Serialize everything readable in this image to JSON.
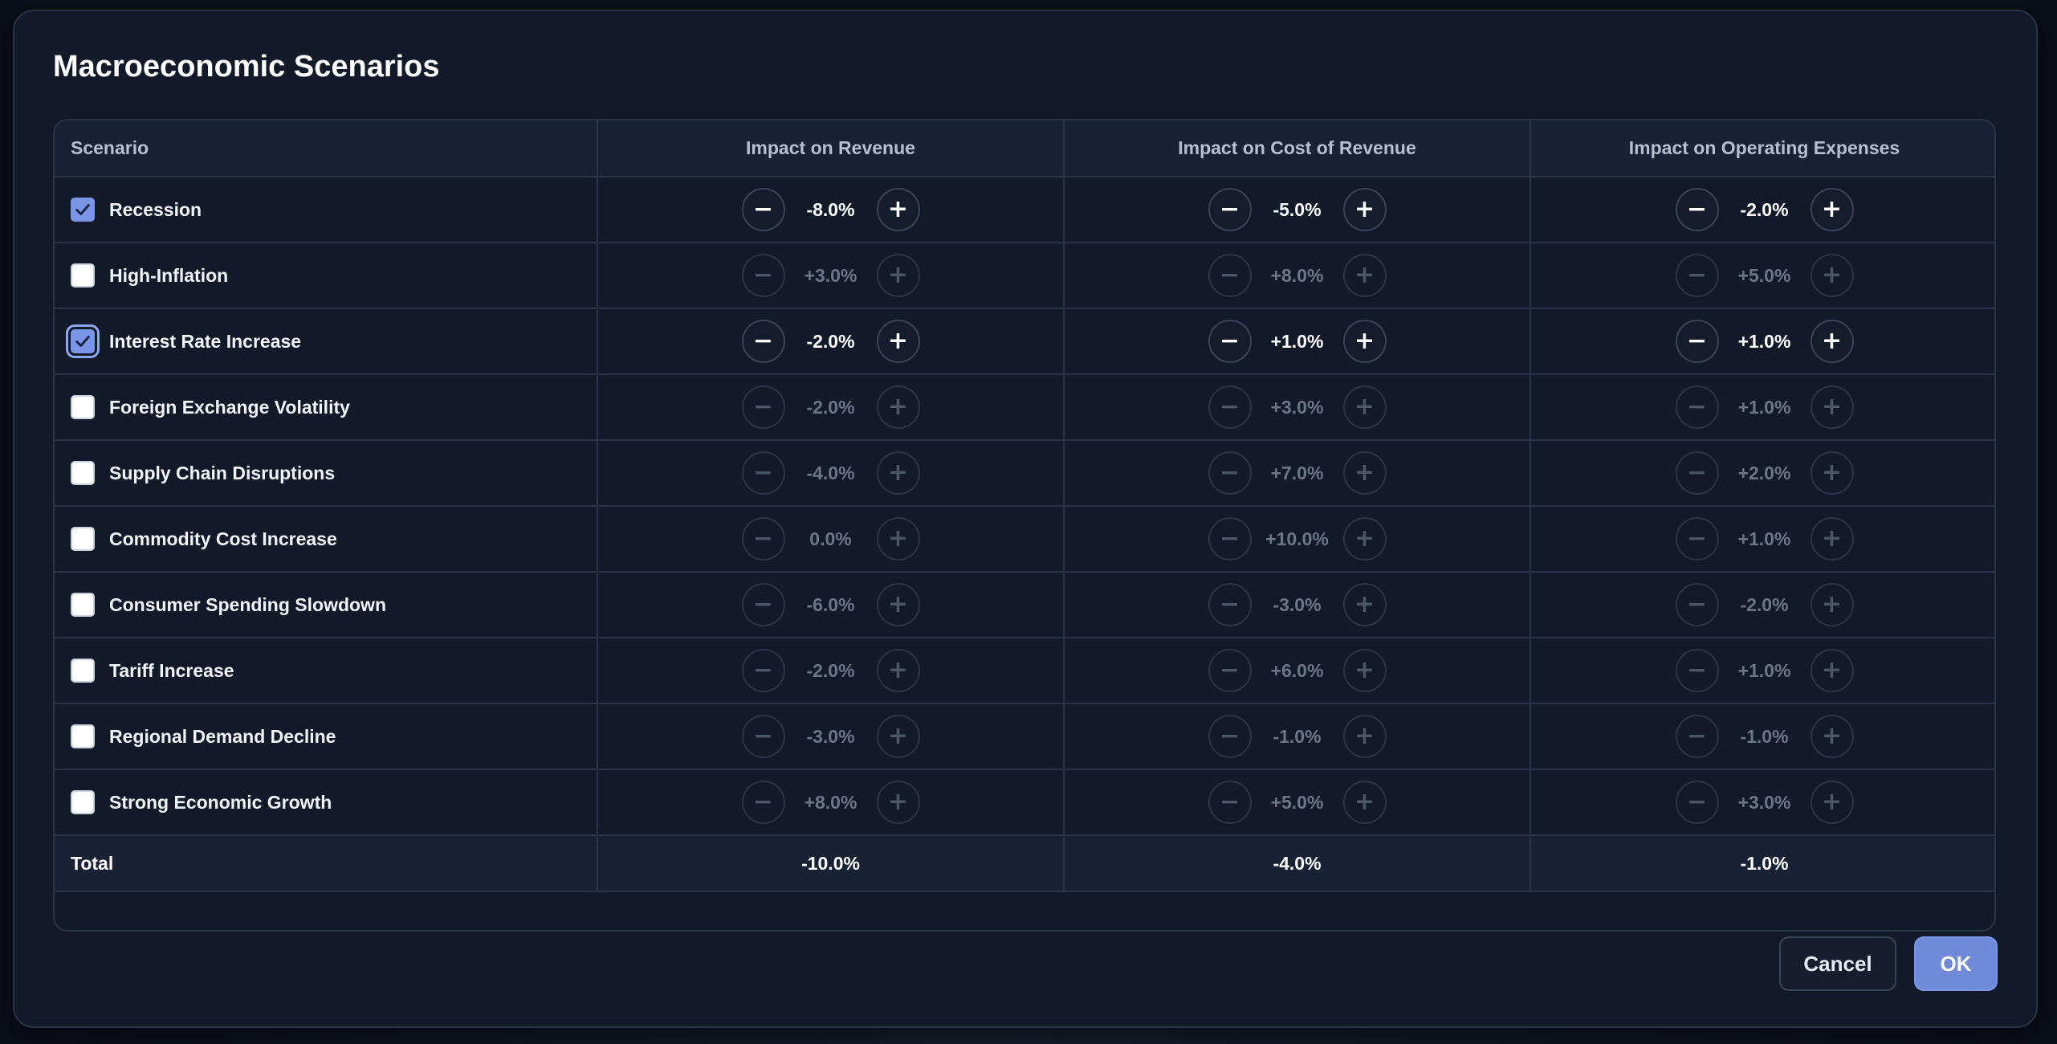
{
  "dialog": {
    "title": "Macroeconomic Scenarios",
    "cancel_label": "Cancel",
    "ok_label": "OK"
  },
  "table": {
    "headers": [
      "Scenario",
      "Impact on Revenue",
      "Impact on Cost of Revenue",
      "Impact on Operating Expenses"
    ],
    "rows": [
      {
        "name": "Recession",
        "checked": true,
        "revenue": "-8.0%",
        "cost": "-5.0%",
        "opex": "-2.0%"
      },
      {
        "name": "High-Inflation",
        "checked": false,
        "revenue": "+3.0%",
        "cost": "+8.0%",
        "opex": "+5.0%"
      },
      {
        "name": "Interest Rate Increase",
        "checked": true,
        "focused": true,
        "revenue": "-2.0%",
        "cost": "+1.0%",
        "opex": "+1.0%"
      },
      {
        "name": "Foreign Exchange Volatility",
        "checked": false,
        "revenue": "-2.0%",
        "cost": "+3.0%",
        "opex": "+1.0%"
      },
      {
        "name": "Supply Chain Disruptions",
        "checked": false,
        "revenue": "-4.0%",
        "cost": "+7.0%",
        "opex": "+2.0%"
      },
      {
        "name": "Commodity Cost Increase",
        "checked": false,
        "revenue": "0.0%",
        "cost": "+10.0%",
        "opex": "+1.0%"
      },
      {
        "name": "Consumer Spending Slowdown",
        "checked": false,
        "revenue": "-6.0%",
        "cost": "-3.0%",
        "opex": "-2.0%"
      },
      {
        "name": "Tariff Increase",
        "checked": false,
        "revenue": "-2.0%",
        "cost": "+6.0%",
        "opex": "+1.0%"
      },
      {
        "name": "Regional Demand Decline",
        "checked": false,
        "revenue": "-3.0%",
        "cost": "-1.0%",
        "opex": "-1.0%"
      },
      {
        "name": "Strong Economic Growth",
        "checked": false,
        "revenue": "+8.0%",
        "cost": "+5.0%",
        "opex": "+3.0%"
      }
    ],
    "total": {
      "label": "Total",
      "revenue": "-10.0%",
      "cost": "-4.0%",
      "opex": "-1.0%"
    }
  },
  "icons": {
    "decrement": "minus-icon",
    "increment": "plus-icon",
    "checkmark": "checkmark-icon"
  },
  "colors": {
    "background": "#121a2a",
    "accent": "#7b96e6",
    "border": "#2a3448"
  }
}
